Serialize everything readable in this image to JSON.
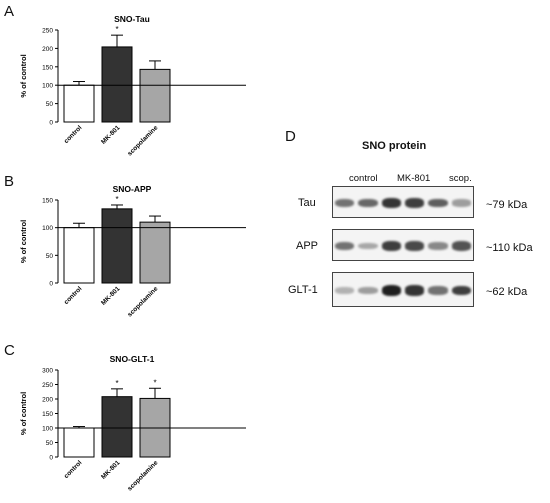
{
  "panel_letters": [
    "A",
    "B",
    "C",
    "D"
  ],
  "chart_data": [
    {
      "type": "bar",
      "title": "SNO-Tau",
      "ylabel": "% of control",
      "xlabel": "",
      "categories": [
        "control",
        "MK-801",
        "scopolamine"
      ],
      "values": [
        100,
        204,
        143
      ],
      "errors": [
        10,
        32,
        23
      ],
      "significance": [
        "",
        "*",
        ""
      ],
      "ylim": [
        0,
        250
      ],
      "yticks": [
        0,
        50,
        100,
        150,
        200,
        250
      ],
      "reference_line": 100,
      "bar_colors": [
        "#ffffff",
        "#333333",
        "#a6a6a6"
      ]
    },
    {
      "type": "bar",
      "title": "SNO-APP",
      "ylabel": "% of control",
      "xlabel": "",
      "categories": [
        "control",
        "MK-801",
        "scopolamine"
      ],
      "values": [
        100,
        134,
        110
      ],
      "errors": [
        8,
        7,
        11
      ],
      "significance": [
        "",
        "*",
        ""
      ],
      "ylim": [
        0,
        150
      ],
      "yticks": [
        0,
        50,
        100,
        150
      ],
      "reference_line": 100,
      "bar_colors": [
        "#ffffff",
        "#333333",
        "#a6a6a6"
      ]
    },
    {
      "type": "bar",
      "title": "SNO-GLT-1",
      "ylabel": "% of control",
      "xlabel": "",
      "categories": [
        "control",
        "MK-801",
        "scopolamine"
      ],
      "values": [
        100,
        208,
        202
      ],
      "errors": [
        5,
        27,
        35
      ],
      "significance": [
        "",
        "*",
        "*"
      ],
      "ylim": [
        0,
        300
      ],
      "yticks": [
        0,
        50,
        100,
        150,
        200,
        250,
        300
      ],
      "reference_line": 100,
      "bar_colors": [
        "#ffffff",
        "#333333",
        "#a6a6a6"
      ]
    }
  ],
  "blot": {
    "title": "SNO protein",
    "groups": [
      "control",
      "MK-801",
      "scop."
    ],
    "rows": [
      {
        "label": "Tau",
        "size": "~79 kDa",
        "intensities": [
          0.55,
          0.6,
          0.85,
          0.8,
          0.65,
          0.35
        ]
      },
      {
        "label": "APP",
        "size": "~110 kDa",
        "intensities": [
          0.55,
          0.3,
          0.8,
          0.75,
          0.45,
          0.7
        ]
      },
      {
        "label": "GLT-1",
        "size": "~62 kDa",
        "intensities": [
          0.25,
          0.35,
          0.95,
          0.85,
          0.55,
          0.8
        ]
      }
    ]
  }
}
